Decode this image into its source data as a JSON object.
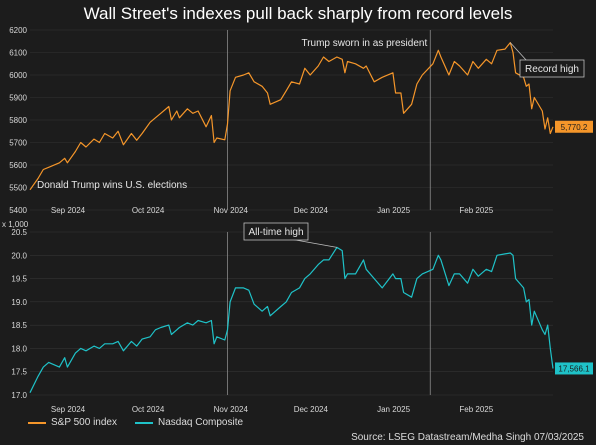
{
  "title": "Wall Street's indexes pull back sharply from record levels",
  "source": "Source: LSEG Datastream/Medha Singh 07/03/2025",
  "colors": {
    "sp500": "#f5962a",
    "nasdaq": "#1fc2c8",
    "vline": "#8a8a8a",
    "grid": "#333333"
  },
  "legend": [
    {
      "label": "S&P 500 index",
      "color": "#f5962a"
    },
    {
      "label": "Nasdaq Composite",
      "color": "#1fc2c8"
    }
  ],
  "chart_data": [
    {
      "type": "line",
      "series": [
        {
          "name": "S&P 500 index"
        }
      ],
      "x_range": [
        "2024-08-23",
        "2025-03-07"
      ],
      "x_ticks": [
        {
          "label": "Sep 2024",
          "date": "2024-09-01"
        },
        {
          "label": "Oct 2024",
          "date": "2024-10-01"
        },
        {
          "label": "Nov 2024",
          "date": "2024-11-01"
        },
        {
          "label": "Dec 2024",
          "date": "2024-12-01"
        },
        {
          "label": "Jan 2025",
          "date": "2025-01-01"
        },
        {
          "label": "Feb 2025",
          "date": "2025-02-01"
        }
      ],
      "ylim": [
        5400,
        6200
      ],
      "y_ticks": [
        5400,
        5500,
        5600,
        5700,
        5800,
        5900,
        6000,
        6100,
        6200
      ],
      "points": [
        [
          "2024-08-23",
          5490
        ],
        [
          "2024-08-26",
          5540
        ],
        [
          "2024-08-28",
          5580
        ],
        [
          "2024-08-30",
          5590
        ],
        [
          "2024-09-03",
          5610
        ],
        [
          "2024-09-05",
          5630
        ],
        [
          "2024-09-06",
          5610
        ],
        [
          "2024-09-09",
          5660
        ],
        [
          "2024-09-11",
          5700
        ],
        [
          "2024-09-13",
          5680
        ],
        [
          "2024-09-16",
          5715
        ],
        [
          "2024-09-18",
          5700
        ],
        [
          "2024-09-20",
          5740
        ],
        [
          "2024-09-23",
          5720
        ],
        [
          "2024-09-25",
          5750
        ],
        [
          "2024-09-27",
          5690
        ],
        [
          "2024-09-30",
          5740
        ],
        [
          "2024-10-02",
          5710
        ],
        [
          "2024-10-04",
          5740
        ],
        [
          "2024-10-07",
          5790
        ],
        [
          "2024-10-09",
          5810
        ],
        [
          "2024-10-11",
          5830
        ],
        [
          "2024-10-14",
          5860
        ],
        [
          "2024-10-15",
          5800
        ],
        [
          "2024-10-17",
          5840
        ],
        [
          "2024-10-18",
          5810
        ],
        [
          "2024-10-21",
          5850
        ],
        [
          "2024-10-23",
          5830
        ],
        [
          "2024-10-25",
          5840
        ],
        [
          "2024-10-28",
          5770
        ],
        [
          "2024-10-30",
          5820
        ],
        [
          "2024-10-31",
          5700
        ],
        [
          "2024-11-01",
          5720
        ],
        [
          "2024-11-04",
          5712
        ],
        [
          "2024-11-05",
          5782
        ],
        [
          "2024-11-06",
          5930
        ],
        [
          "2024-11-08",
          5990
        ],
        [
          "2024-11-11",
          6000
        ],
        [
          "2024-11-13",
          6010
        ],
        [
          "2024-11-15",
          5970
        ],
        [
          "2024-11-18",
          5950
        ],
        [
          "2024-11-20",
          5920
        ],
        [
          "2024-11-21",
          5870
        ],
        [
          "2024-11-25",
          5890
        ],
        [
          "2024-11-27",
          5930
        ],
        [
          "2024-11-29",
          5970
        ],
        [
          "2024-12-02",
          5960
        ],
        [
          "2024-12-04",
          6030
        ],
        [
          "2024-12-06",
          6000
        ],
        [
          "2024-12-09",
          6040
        ],
        [
          "2024-12-11",
          6080
        ],
        [
          "2024-12-13",
          6060
        ],
        [
          "2024-12-16",
          6080
        ],
        [
          "2024-12-18",
          6070
        ],
        [
          "2024-12-19",
          6010
        ],
        [
          "2024-12-20",
          6060
        ],
        [
          "2024-12-23",
          6050
        ],
        [
          "2024-12-26",
          6030
        ],
        [
          "2024-12-27",
          6040
        ],
        [
          "2024-12-30",
          5970
        ],
        [
          "2025-01-02",
          5990
        ],
        [
          "2025-01-06",
          6010
        ],
        [
          "2025-01-07",
          5920
        ],
        [
          "2025-01-09",
          5920
        ],
        [
          "2025-01-10",
          5830
        ],
        [
          "2025-01-13",
          5870
        ],
        [
          "2025-01-15",
          5960
        ],
        [
          "2025-01-17",
          6000
        ],
        [
          "2025-01-21",
          6050
        ],
        [
          "2025-01-23",
          6110
        ],
        [
          "2025-01-24",
          6080
        ],
        [
          "2025-01-27",
          6000
        ],
        [
          "2025-01-29",
          6060
        ],
        [
          "2025-01-31",
          6040
        ],
        [
          "2025-02-03",
          6000
        ],
        [
          "2025-02-05",
          6060
        ],
        [
          "2025-02-07",
          6030
        ],
        [
          "2025-02-10",
          6070
        ],
        [
          "2025-02-12",
          6050
        ],
        [
          "2025-02-14",
          6110
        ],
        [
          "2025-02-17",
          6115
        ],
        [
          "2025-02-19",
          6144
        ],
        [
          "2025-02-20",
          6100
        ],
        [
          "2025-02-21",
          6010
        ],
        [
          "2025-02-24",
          5990
        ],
        [
          "2025-02-25",
          5950
        ],
        [
          "2025-02-26",
          5960
        ],
        [
          "2025-02-27",
          5850
        ],
        [
          "2025-02-28",
          5900
        ],
        [
          "2025-03-03",
          5840
        ],
        [
          "2025-03-04",
          5760
        ],
        [
          "2025-03-05",
          5810
        ],
        [
          "2025-03-06",
          5740
        ],
        [
          "2025-03-07",
          5770
        ]
      ],
      "last_value_label": "5,770.2",
      "annotations": [
        {
          "text": "Donald Trump wins U.S. elections",
          "date": "2024-11-05"
        },
        {
          "text": "Trump sworn in as president",
          "date": "2025-01-20"
        },
        {
          "text": "Record high",
          "date": "2025-02-19",
          "value": 6144
        }
      ]
    },
    {
      "type": "line",
      "series": [
        {
          "name": "Nasdaq Composite"
        }
      ],
      "x_range": [
        "2024-08-23",
        "2025-03-07"
      ],
      "ylabel": "x 1,000",
      "ylim": [
        17.0,
        20.5
      ],
      "y_ticks": [
        17.0,
        17.5,
        18.0,
        18.5,
        19.0,
        19.5,
        20.0,
        20.5
      ],
      "points": [
        [
          "2024-08-23",
          17.05
        ],
        [
          "2024-08-26",
          17.4
        ],
        [
          "2024-08-28",
          17.6
        ],
        [
          "2024-08-30",
          17.7
        ],
        [
          "2024-09-03",
          17.6
        ],
        [
          "2024-09-05",
          17.8
        ],
        [
          "2024-09-06",
          17.6
        ],
        [
          "2024-09-09",
          17.9
        ],
        [
          "2024-09-11",
          18.0
        ],
        [
          "2024-09-13",
          17.95
        ],
        [
          "2024-09-16",
          18.05
        ],
        [
          "2024-09-18",
          18.0
        ],
        [
          "2024-09-20",
          18.1
        ],
        [
          "2024-09-23",
          18.1
        ],
        [
          "2024-09-25",
          18.15
        ],
        [
          "2024-09-27",
          17.95
        ],
        [
          "2024-09-30",
          18.15
        ],
        [
          "2024-10-02",
          18.05
        ],
        [
          "2024-10-04",
          18.2
        ],
        [
          "2024-10-07",
          18.25
        ],
        [
          "2024-10-09",
          18.4
        ],
        [
          "2024-10-11",
          18.45
        ],
        [
          "2024-10-14",
          18.5
        ],
        [
          "2024-10-15",
          18.3
        ],
        [
          "2024-10-17",
          18.4
        ],
        [
          "2024-10-18",
          18.45
        ],
        [
          "2024-10-21",
          18.55
        ],
        [
          "2024-10-23",
          18.5
        ],
        [
          "2024-10-25",
          18.6
        ],
        [
          "2024-10-28",
          18.55
        ],
        [
          "2024-10-30",
          18.6
        ],
        [
          "2024-10-31",
          18.1
        ],
        [
          "2024-11-01",
          18.25
        ],
        [
          "2024-11-04",
          18.18
        ],
        [
          "2024-11-05",
          18.4
        ],
        [
          "2024-11-06",
          19.0
        ],
        [
          "2024-11-08",
          19.3
        ],
        [
          "2024-11-11",
          19.3
        ],
        [
          "2024-11-13",
          19.25
        ],
        [
          "2024-11-15",
          18.95
        ],
        [
          "2024-11-18",
          18.8
        ],
        [
          "2024-11-20",
          18.9
        ],
        [
          "2024-11-21",
          18.7
        ],
        [
          "2024-11-25",
          18.9
        ],
        [
          "2024-11-27",
          19.0
        ],
        [
          "2024-11-29",
          19.2
        ],
        [
          "2024-12-02",
          19.3
        ],
        [
          "2024-12-04",
          19.5
        ],
        [
          "2024-12-06",
          19.6
        ],
        [
          "2024-12-09",
          19.8
        ],
        [
          "2024-12-11",
          19.9
        ],
        [
          "2024-12-13",
          19.9
        ],
        [
          "2024-12-16",
          20.17
        ],
        [
          "2024-12-18",
          20.1
        ],
        [
          "2024-12-19",
          19.5
        ],
        [
          "2024-12-20",
          19.6
        ],
        [
          "2024-12-23",
          19.6
        ],
        [
          "2024-12-26",
          19.9
        ],
        [
          "2024-12-27",
          19.7
        ],
        [
          "2024-12-30",
          19.5
        ],
        [
          "2025-01-02",
          19.3
        ],
        [
          "2025-01-06",
          19.6
        ],
        [
          "2025-01-07",
          19.5
        ],
        [
          "2025-01-09",
          19.5
        ],
        [
          "2025-01-10",
          19.2
        ],
        [
          "2025-01-13",
          19.1
        ],
        [
          "2025-01-15",
          19.5
        ],
        [
          "2025-01-17",
          19.6
        ],
        [
          "2025-01-21",
          19.7
        ],
        [
          "2025-01-23",
          20.0
        ],
        [
          "2025-01-24",
          19.9
        ],
        [
          "2025-01-27",
          19.35
        ],
        [
          "2025-01-29",
          19.6
        ],
        [
          "2025-01-31",
          19.6
        ],
        [
          "2025-02-03",
          19.4
        ],
        [
          "2025-02-05",
          19.7
        ],
        [
          "2025-02-07",
          19.55
        ],
        [
          "2025-02-10",
          19.7
        ],
        [
          "2025-02-12",
          19.65
        ],
        [
          "2025-02-14",
          20.0
        ],
        [
          "2025-02-17",
          20.03
        ],
        [
          "2025-02-19",
          20.05
        ],
        [
          "2025-02-20",
          20.0
        ],
        [
          "2025-02-21",
          19.5
        ],
        [
          "2025-02-24",
          19.3
        ],
        [
          "2025-02-25",
          19.0
        ],
        [
          "2025-02-26",
          19.05
        ],
        [
          "2025-02-27",
          18.5
        ],
        [
          "2025-02-28",
          18.8
        ],
        [
          "2025-03-03",
          18.4
        ],
        [
          "2025-03-04",
          18.3
        ],
        [
          "2025-03-05",
          18.5
        ],
        [
          "2025-03-06",
          18.0
        ],
        [
          "2025-03-07",
          17.57
        ]
      ],
      "last_value_label": "17,566.1",
      "annotations": [
        {
          "text": "All-time high",
          "date": "2024-12-16",
          "value": 20.17
        }
      ]
    }
  ]
}
